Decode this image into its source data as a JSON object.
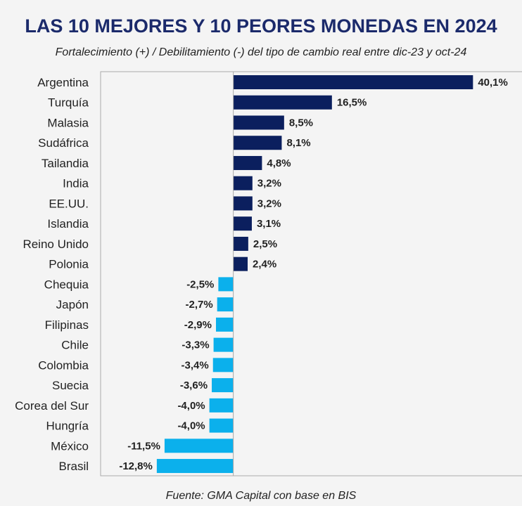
{
  "chart_data": {
    "type": "bar",
    "orientation": "horizontal",
    "title": "LAS 10 MEJORES Y 10 PEORES MONEDAS EN 2024",
    "subtitle": "Fortalecimiento (+) / Debilitamiento (-) del tipo de cambio real entre dic-23 y oct-24",
    "source": "Fuente: GMA Capital con base en BIS",
    "categories": [
      "Argentina",
      "Turquía",
      "Malasia",
      "Sudáfrica",
      "Tailandia",
      "India",
      "EE.UU.",
      "Islandia",
      "Reino Unido",
      "Polonia",
      "Chequia",
      "Japón",
      "Filipinas",
      "Chile",
      "Colombia",
      "Suecia",
      "Corea del Sur",
      "Hungría",
      "México",
      "Brasil"
    ],
    "values": [
      40.1,
      16.5,
      8.5,
      8.1,
      4.8,
      3.2,
      3.2,
      3.1,
      2.5,
      2.4,
      -2.5,
      -2.7,
      -2.9,
      -3.3,
      -3.4,
      -3.6,
      -4.0,
      -4.0,
      -11.5,
      -12.8
    ],
    "labels": [
      "40,1%",
      "16,5%",
      "8,5%",
      "8,1%",
      "4,8%",
      "3,2%",
      "3,2%",
      "3,1%",
      "2,5%",
      "2,4%",
      "-2,5%",
      "-2,7%",
      "-2,9%",
      "-3,3%",
      "-3,4%",
      "-3,6%",
      "-4,0%",
      "-4,0%",
      "-11,5%",
      "-12,8%"
    ],
    "xlim": [
      -22.2,
      48.3
    ],
    "grid": false,
    "colors": {
      "positive": "#0b1f5e",
      "negative": "#0bb0ec",
      "title": "#1b2a6b"
    }
  }
}
